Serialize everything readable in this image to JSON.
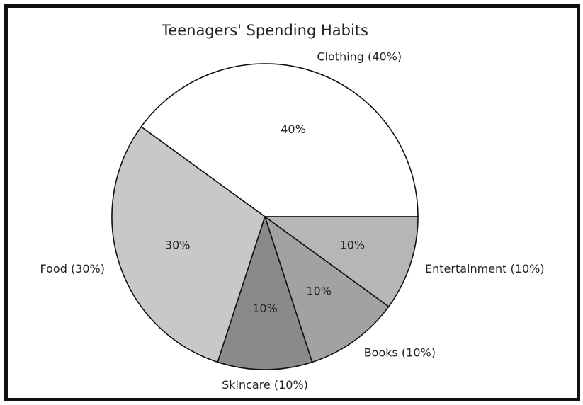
{
  "chart_data": {
    "type": "pie",
    "title": "Teenagers' Spending Habits",
    "slices": [
      {
        "label": "Clothing (40%)",
        "value": 40,
        "pct_label": "40%",
        "color": "#ffffff"
      },
      {
        "label": "Food (30%)",
        "value": 30,
        "pct_label": "30%",
        "color": "#c8c8c8"
      },
      {
        "label": "Skincare (10%)",
        "value": 10,
        "pct_label": "10%",
        "color": "#8a8a8a"
      },
      {
        "label": "Books (10%)",
        "value": 10,
        "pct_label": "10%",
        "color": "#a2a2a2"
      },
      {
        "label": "Entertainment (10%)",
        "value": 10,
        "pct_label": "10%",
        "color": "#b6b6b6"
      }
    ],
    "start": "3 o'clock",
    "direction": "counterclockwise",
    "legend": "none"
  }
}
